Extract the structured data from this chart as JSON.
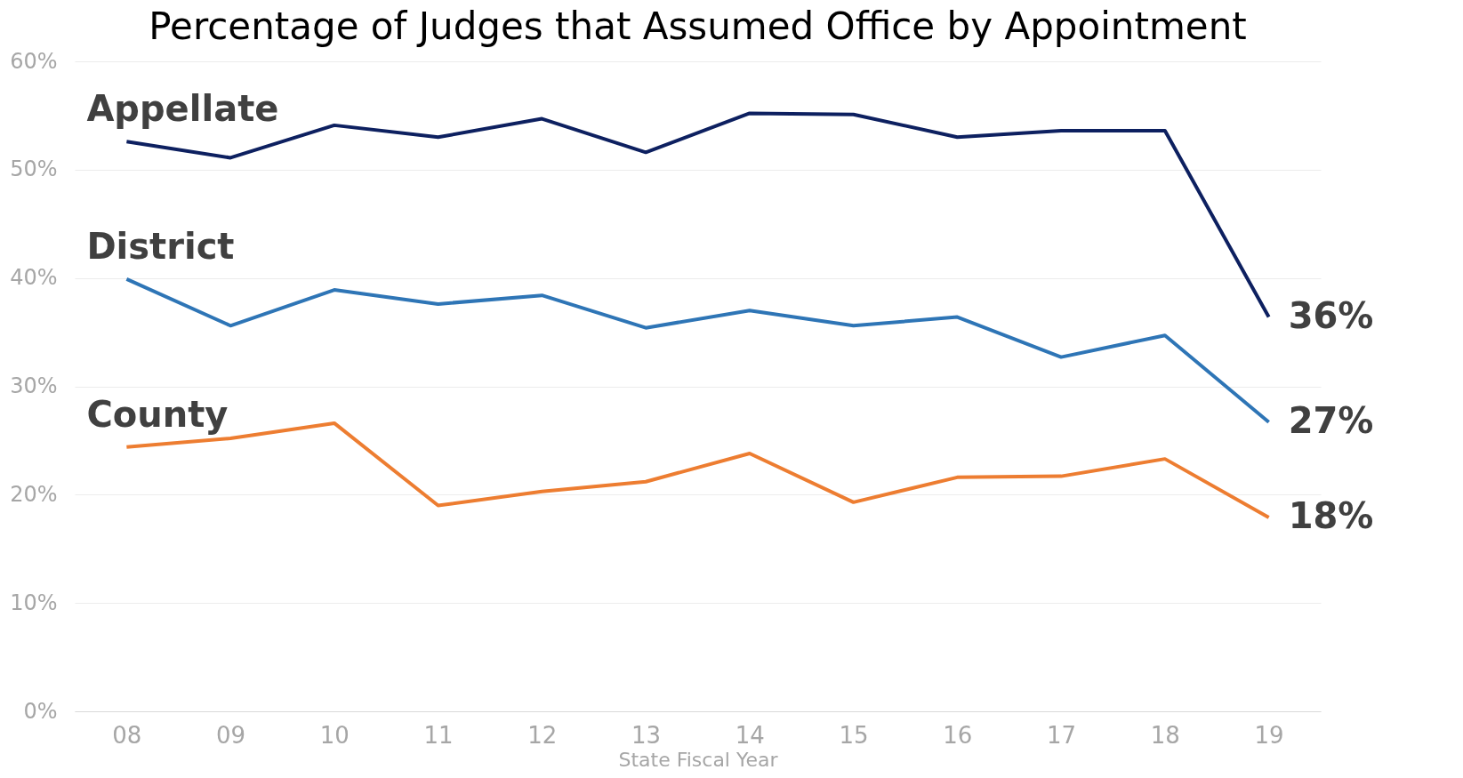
{
  "chart_data": {
    "type": "line",
    "title": "Percentage of Judges that Assumed Office by Appointment",
    "xlabel": "State Fiscal Year",
    "categories": [
      "08",
      "09",
      "10",
      "11",
      "12",
      "13",
      "14",
      "15",
      "16",
      "17",
      "18",
      "19"
    ],
    "series": [
      {
        "name": "Appellate",
        "color": "#0d2060",
        "values": [
          52.6,
          51.1,
          54.1,
          53.0,
          54.7,
          51.6,
          55.2,
          55.1,
          53.0,
          53.6,
          53.6,
          36.4
        ],
        "value_labels": [
          null,
          null,
          null,
          null,
          null,
          null,
          null,
          null,
          null,
          null,
          null,
          "36%"
        ]
      },
      {
        "name": "District",
        "color": "#2e75b6",
        "values": [
          39.9,
          35.6,
          38.9,
          37.6,
          38.4,
          35.4,
          37.0,
          35.6,
          36.4,
          32.7,
          34.7,
          26.7
        ],
        "value_labels": [
          null,
          null,
          null,
          null,
          null,
          null,
          null,
          null,
          null,
          null,
          null,
          "27%"
        ]
      },
      {
        "name": "County",
        "color": "#ed7d31",
        "values": [
          24.4,
          25.2,
          26.6,
          19.0,
          20.3,
          21.2,
          23.8,
          19.3,
          21.6,
          21.7,
          23.3,
          17.9
        ],
        "value_labels": [
          null,
          null,
          null,
          null,
          null,
          null,
          null,
          null,
          null,
          null,
          null,
          "18%"
        ]
      }
    ],
    "ylim": [
      0,
      60
    ],
    "yticks": [
      {
        "value": 0,
        "label": "0%"
      },
      {
        "value": 10,
        "label": "10%"
      },
      {
        "value": 20,
        "label": "20%"
      },
      {
        "value": 30,
        "label": "30%"
      },
      {
        "value": 40,
        "label": "40%"
      },
      {
        "value": 50,
        "label": "50%"
      },
      {
        "value": 60,
        "label": "60%"
      }
    ],
    "grid": "y",
    "legend": false
  }
}
